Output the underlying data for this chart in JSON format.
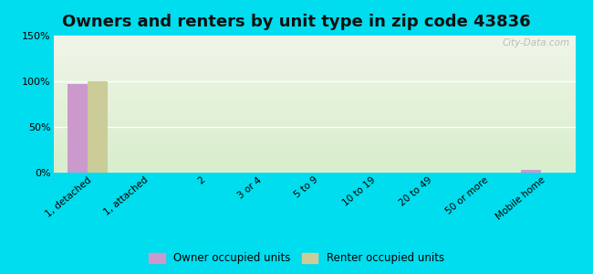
{
  "title": "Owners and renters by unit type in zip code 43836",
  "categories": [
    "1, detached",
    "1, attached",
    "2",
    "3 or 4",
    "5 to 9",
    "10 to 19",
    "20 to 49",
    "50 or more",
    "Mobile home"
  ],
  "owner_values": [
    97,
    0,
    0,
    0,
    0,
    0,
    0,
    0,
    3
  ],
  "renter_values": [
    100,
    0,
    0,
    0,
    0,
    0,
    0,
    0,
    0
  ],
  "owner_color": "#cc99cc",
  "renter_color": "#cccc99",
  "ylim": [
    0,
    150
  ],
  "yticks": [
    0,
    50,
    100,
    150
  ],
  "ytick_labels": [
    "0%",
    "50%",
    "100%",
    "150%"
  ],
  "bg_top": "#f0f5e8",
  "bg_bottom": "#d8eecc",
  "outer_bg": "#00ddee",
  "bar_width": 0.35,
  "title_fontsize": 13,
  "watermark": "City-Data.com"
}
